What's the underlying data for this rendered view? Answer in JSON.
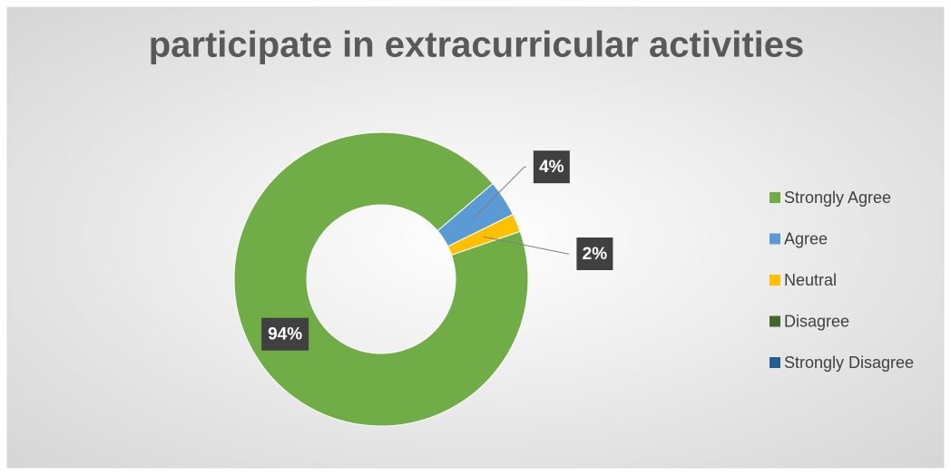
{
  "chart_data": {
    "type": "donut",
    "title": "participate in extracurricular activities",
    "categories": [
      "Strongly Agree",
      "Agree",
      "Neutral",
      "Disagree",
      "Strongly Disagree"
    ],
    "values": [
      94,
      4,
      2,
      0,
      0
    ],
    "value_labels": [
      "94%",
      "4%",
      "2%",
      null,
      null
    ],
    "colors": [
      "#70ad47",
      "#5b9bd5",
      "#ffc000",
      "#43682b",
      "#255e91"
    ],
    "legend": "right"
  }
}
